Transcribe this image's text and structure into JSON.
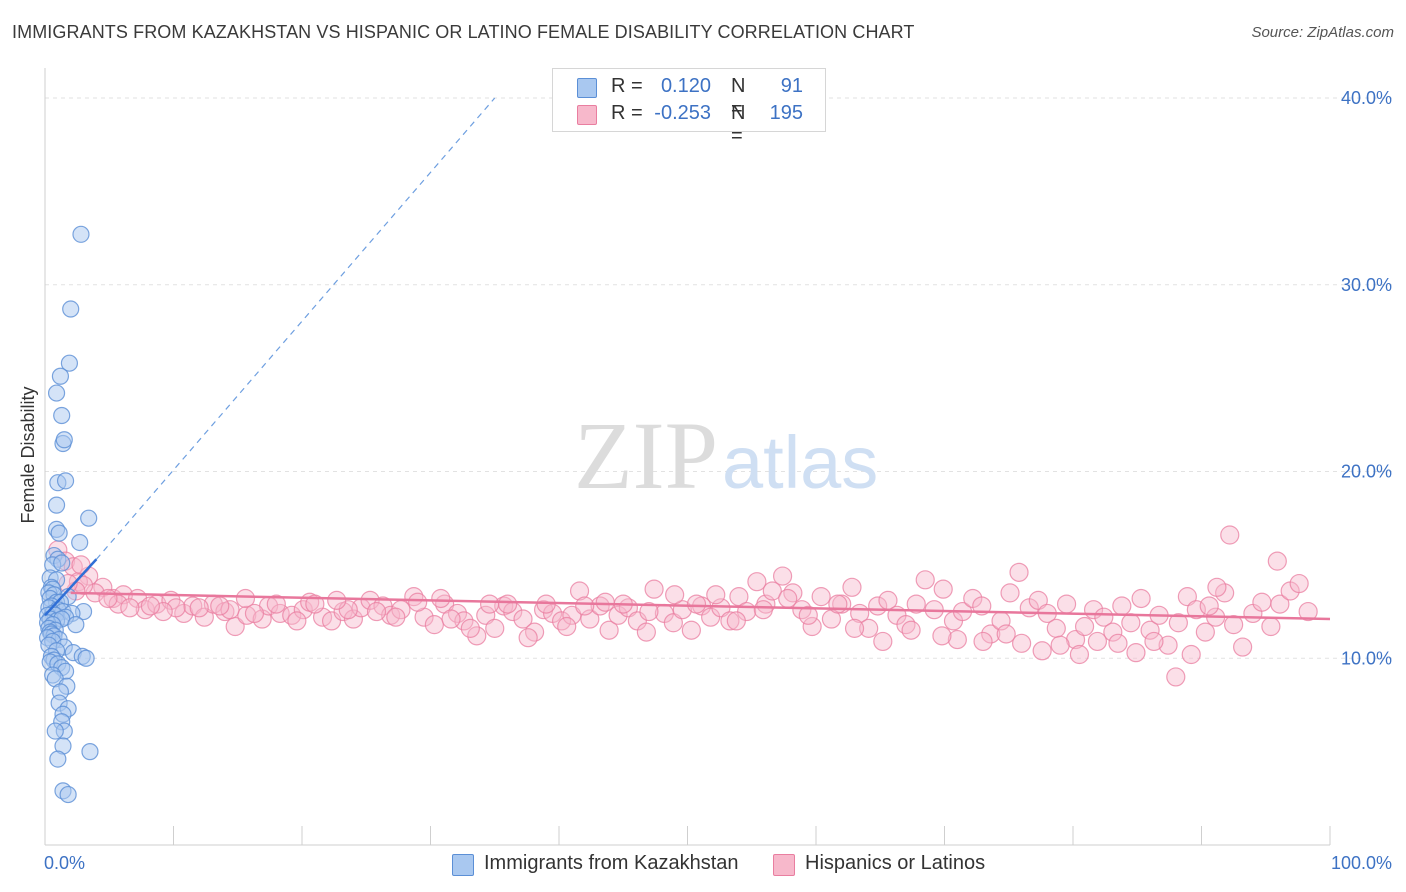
{
  "header": {
    "title": "IMMIGRANTS FROM KAZAKHSTAN VS HISPANIC OR LATINO FEMALE DISABILITY CORRELATION CHART",
    "source": "Source: ZipAtlas.com"
  },
  "watermark": {
    "part1": "ZIP",
    "part2": "atlas"
  },
  "legend": {
    "rows": [
      {
        "r_label": "R =",
        "r_value": "0.120",
        "n_label": "N =",
        "n_value": "91",
        "color": "#a9c8f0",
        "stroke": "#5b8fd6"
      },
      {
        "r_label": "R =",
        "r_value": "-0.253",
        "n_label": "N =",
        "n_value": "195",
        "color": "#f7b8cb",
        "stroke": "#e97ea0"
      }
    ]
  },
  "bottom_legend": {
    "items": [
      {
        "label": "Immigrants from Kazakhstan",
        "color": "#a9c8f0",
        "stroke": "#5b8fd6"
      },
      {
        "label": "Hispanics or Latinos",
        "color": "#f7b8cb",
        "stroke": "#e97ea0"
      }
    ]
  },
  "chart_data": {
    "type": "scatter",
    "title": "IMMIGRANTS FROM KAZAKHSTAN VS HISPANIC OR LATINO FEMALE DISABILITY CORRELATION CHART",
    "xlabel": "",
    "ylabel": "Female Disability",
    "xlim": [
      0,
      100
    ],
    "ylim": [
      0,
      41.5
    ],
    "x_tick_labels": [
      "0.0%",
      "100.0%"
    ],
    "y_ticks": [
      10,
      20,
      30,
      40
    ],
    "y_tick_labels": [
      "10.0%",
      "20.0%",
      "30.0%",
      "40.0%"
    ],
    "grid": true,
    "series": [
      {
        "name": "Immigrants from Kazakhstan",
        "color": "#a9c8f0",
        "stroke": "#5b8fd6",
        "trend": {
          "x": [
            0,
            4
          ],
          "y": [
            12.3,
            15.3
          ],
          "extended_x": [
            4,
            35
          ],
          "extended_y": [
            15.3,
            40.0
          ]
        },
        "points": [
          [
            2.8,
            32.7
          ],
          [
            2.0,
            28.7
          ],
          [
            1.9,
            25.8
          ],
          [
            1.2,
            25.1
          ],
          [
            0.9,
            24.2
          ],
          [
            1.3,
            23.0
          ],
          [
            1.4,
            21.5
          ],
          [
            1.5,
            21.7
          ],
          [
            1.0,
            19.4
          ],
          [
            1.6,
            19.5
          ],
          [
            0.9,
            18.2
          ],
          [
            3.4,
            17.5
          ],
          [
            0.9,
            16.9
          ],
          [
            1.1,
            16.7
          ],
          [
            2.7,
            16.2
          ],
          [
            0.7,
            15.5
          ],
          [
            1.0,
            15.3
          ],
          [
            0.6,
            15.0
          ],
          [
            1.3,
            15.1
          ],
          [
            0.4,
            14.3
          ],
          [
            0.9,
            14.2
          ],
          [
            0.5,
            13.8
          ],
          [
            0.6,
            13.7
          ],
          [
            0.3,
            13.5
          ],
          [
            0.7,
            13.4
          ],
          [
            1.8,
            13.3
          ],
          [
            0.4,
            13.2
          ],
          [
            0.9,
            13.0
          ],
          [
            1.2,
            13.0
          ],
          [
            0.5,
            12.8
          ],
          [
            0.3,
            12.7
          ],
          [
            1.0,
            12.6
          ],
          [
            1.4,
            12.5
          ],
          [
            3.0,
            12.5
          ],
          [
            0.6,
            12.4
          ],
          [
            2.1,
            12.4
          ],
          [
            0.2,
            12.3
          ],
          [
            0.8,
            12.3
          ],
          [
            1.6,
            12.2
          ],
          [
            0.4,
            12.1
          ],
          [
            0.9,
            12.0
          ],
          [
            1.3,
            12.1
          ],
          [
            0.2,
            11.9
          ],
          [
            0.6,
            11.8
          ],
          [
            2.4,
            11.8
          ],
          [
            0.3,
            11.6
          ],
          [
            0.8,
            11.5
          ],
          [
            0.4,
            11.4
          ],
          [
            0.5,
            11.3
          ],
          [
            0.7,
            11.2
          ],
          [
            0.2,
            11.1
          ],
          [
            1.1,
            11.0
          ],
          [
            0.6,
            10.9
          ],
          [
            0.3,
            10.7
          ],
          [
            1.5,
            10.6
          ],
          [
            0.9,
            10.4
          ],
          [
            2.2,
            10.3
          ],
          [
            0.5,
            10.1
          ],
          [
            2.9,
            10.1
          ],
          [
            3.2,
            10.0
          ],
          [
            0.7,
            9.9
          ],
          [
            0.4,
            9.8
          ],
          [
            1.0,
            9.7
          ],
          [
            1.3,
            9.5
          ],
          [
            1.6,
            9.3
          ],
          [
            0.6,
            9.1
          ],
          [
            0.8,
            8.9
          ],
          [
            1.7,
            8.5
          ],
          [
            1.2,
            8.2
          ],
          [
            1.1,
            7.6
          ],
          [
            1.8,
            7.3
          ],
          [
            1.4,
            7.0
          ],
          [
            1.3,
            6.6
          ],
          [
            1.5,
            6.1
          ],
          [
            0.8,
            6.1
          ],
          [
            1.4,
            5.3
          ],
          [
            3.5,
            5.0
          ],
          [
            1.0,
            4.6
          ],
          [
            1.4,
            2.9
          ],
          [
            1.8,
            2.7
          ]
        ]
      },
      {
        "name": "Hispanics or Latinos",
        "color": "#f7b8cb",
        "stroke": "#e97ea0",
        "trend": {
          "x": [
            2,
            100
          ],
          "y": [
            13.5,
            12.1
          ]
        },
        "points": [
          [
            1.0,
            15.8
          ],
          [
            1.6,
            15.2
          ],
          [
            2.2,
            14.9
          ],
          [
            3.4,
            14.4
          ],
          [
            2.6,
            14.1
          ],
          [
            4.5,
            13.8
          ],
          [
            3.9,
            13.5
          ],
          [
            5.3,
            13.2
          ],
          [
            6.1,
            13.4
          ],
          [
            5.7,
            12.9
          ],
          [
            7.2,
            13.2
          ],
          [
            7.8,
            12.6
          ],
          [
            8.7,
            12.9
          ],
          [
            9.8,
            13.1
          ],
          [
            10.8,
            12.4
          ],
          [
            11.5,
            12.8
          ],
          [
            12.4,
            12.2
          ],
          [
            13.1,
            12.9
          ],
          [
            14.0,
            12.5
          ],
          [
            14.8,
            11.7
          ],
          [
            15.7,
            12.3
          ],
          [
            15.6,
            13.2
          ],
          [
            16.9,
            12.1
          ],
          [
            17.4,
            12.8
          ],
          [
            18.3,
            12.4
          ],
          [
            19.2,
            12.3
          ],
          [
            20.1,
            12.6
          ],
          [
            20.6,
            13.0
          ],
          [
            21.6,
            12.2
          ],
          [
            22.3,
            12.0
          ],
          [
            23.2,
            12.5
          ],
          [
            24.0,
            12.1
          ],
          [
            24.6,
            12.7
          ],
          [
            25.3,
            13.1
          ],
          [
            26.3,
            12.8
          ],
          [
            26.9,
            12.3
          ],
          [
            27.7,
            12.6
          ],
          [
            28.7,
            13.3
          ],
          [
            29.5,
            12.2
          ],
          [
            30.3,
            11.8
          ],
          [
            31.1,
            12.9
          ],
          [
            32.1,
            12.4
          ],
          [
            32.6,
            12.0
          ],
          [
            33.6,
            11.2
          ],
          [
            34.3,
            12.3
          ],
          [
            35.0,
            11.6
          ],
          [
            35.7,
            12.8
          ],
          [
            36.4,
            12.5
          ],
          [
            37.2,
            12.1
          ],
          [
            38.1,
            11.4
          ],
          [
            38.8,
            12.6
          ],
          [
            39.5,
            12.4
          ],
          [
            40.2,
            12.0
          ],
          [
            41.0,
            12.3
          ],
          [
            41.6,
            13.6
          ],
          [
            42.4,
            12.1
          ],
          [
            43.2,
            12.8
          ],
          [
            43.9,
            11.5
          ],
          [
            44.6,
            12.3
          ],
          [
            45.4,
            12.7
          ],
          [
            46.1,
            12.0
          ],
          [
            46.8,
            11.4
          ],
          [
            47.4,
            13.7
          ],
          [
            48.2,
            12.4
          ],
          [
            48.9,
            11.9
          ],
          [
            49.6,
            12.6
          ],
          [
            50.3,
            11.5
          ],
          [
            51.1,
            12.8
          ],
          [
            51.8,
            12.2
          ],
          [
            52.6,
            12.7
          ],
          [
            53.3,
            12.0
          ],
          [
            54.0,
            13.3
          ],
          [
            54.6,
            12.5
          ],
          [
            55.4,
            14.1
          ],
          [
            56.1,
            12.9
          ],
          [
            56.6,
            13.6
          ],
          [
            57.4,
            14.4
          ],
          [
            58.2,
            13.5
          ],
          [
            58.9,
            12.6
          ],
          [
            59.7,
            11.7
          ],
          [
            60.4,
            13.3
          ],
          [
            61.2,
            12.1
          ],
          [
            62.0,
            12.9
          ],
          [
            62.8,
            13.8
          ],
          [
            63.4,
            12.4
          ],
          [
            64.1,
            11.6
          ],
          [
            64.8,
            12.8
          ],
          [
            65.6,
            13.1
          ],
          [
            66.3,
            12.3
          ],
          [
            67.0,
            11.8
          ],
          [
            67.8,
            12.9
          ],
          [
            68.5,
            14.2
          ],
          [
            69.2,
            12.6
          ],
          [
            69.9,
            13.7
          ],
          [
            70.7,
            12.0
          ],
          [
            71.4,
            12.5
          ],
          [
            72.2,
            13.2
          ],
          [
            72.9,
            12.8
          ],
          [
            73.6,
            11.3
          ],
          [
            74.4,
            12.0
          ],
          [
            75.1,
            13.5
          ],
          [
            75.8,
            14.6
          ],
          [
            76.6,
            12.7
          ],
          [
            77.3,
            13.1
          ],
          [
            78.0,
            12.4
          ],
          [
            78.7,
            11.6
          ],
          [
            79.5,
            12.9
          ],
          [
            80.2,
            11.0
          ],
          [
            80.9,
            11.7
          ],
          [
            81.6,
            12.6
          ],
          [
            82.4,
            12.2
          ],
          [
            83.1,
            11.4
          ],
          [
            83.8,
            12.8
          ],
          [
            84.5,
            11.9
          ],
          [
            85.3,
            13.2
          ],
          [
            86.0,
            11.5
          ],
          [
            86.7,
            12.3
          ],
          [
            87.4,
            10.7
          ],
          [
            88.2,
            11.9
          ],
          [
            88.9,
            13.3
          ],
          [
            89.6,
            12.6
          ],
          [
            90.3,
            11.4
          ],
          [
            91.1,
            12.2
          ],
          [
            91.8,
            13.5
          ],
          [
            92.5,
            11.8
          ],
          [
            93.2,
            10.6
          ],
          [
            94.0,
            12.4
          ],
          [
            94.7,
            13.0
          ],
          [
            95.4,
            11.7
          ],
          [
            96.1,
            12.9
          ],
          [
            96.9,
            13.6
          ],
          [
            97.6,
            14.0
          ],
          [
            98.3,
            12.5
          ],
          [
            95.9,
            15.2
          ],
          [
            92.2,
            16.6
          ],
          [
            91.2,
            13.8
          ],
          [
            90.6,
            12.8
          ],
          [
            89.2,
            10.2
          ],
          [
            88.0,
            9.0
          ],
          [
            86.3,
            10.9
          ],
          [
            84.9,
            10.3
          ],
          [
            83.5,
            10.8
          ],
          [
            81.9,
            10.9
          ],
          [
            80.5,
            10.2
          ],
          [
            79.0,
            10.7
          ],
          [
            77.6,
            10.4
          ],
          [
            76.0,
            10.8
          ],
          [
            74.8,
            11.3
          ],
          [
            73.0,
            10.9
          ],
          [
            71.0,
            11.0
          ],
          [
            69.8,
            11.2
          ],
          [
            67.4,
            11.5
          ],
          [
            65.2,
            10.9
          ],
          [
            63.0,
            11.6
          ],
          [
            61.7,
            12.9
          ],
          [
            59.4,
            12.3
          ],
          [
            57.8,
            13.2
          ],
          [
            55.9,
            12.6
          ],
          [
            53.8,
            12.0
          ],
          [
            52.2,
            13.4
          ],
          [
            50.7,
            12.9
          ],
          [
            49.0,
            13.4
          ],
          [
            47.0,
            12.5
          ],
          [
            45.0,
            12.9
          ],
          [
            43.6,
            13.0
          ],
          [
            42.0,
            12.8
          ],
          [
            40.6,
            11.7
          ],
          [
            39.0,
            12.9
          ],
          [
            37.6,
            11.1
          ],
          [
            36.0,
            12.9
          ],
          [
            34.6,
            12.9
          ],
          [
            33.1,
            11.6
          ],
          [
            31.6,
            12.1
          ],
          [
            30.8,
            13.2
          ],
          [
            29.0,
            13.0
          ],
          [
            27.3,
            12.2
          ],
          [
            25.8,
            12.5
          ],
          [
            23.6,
            12.6
          ],
          [
            22.7,
            13.1
          ],
          [
            21.0,
            12.9
          ],
          [
            19.6,
            12.0
          ],
          [
            18.0,
            12.9
          ],
          [
            16.3,
            12.4
          ],
          [
            14.4,
            12.6
          ],
          [
            13.6,
            12.8
          ],
          [
            12.0,
            12.7
          ],
          [
            10.2,
            12.7
          ],
          [
            9.2,
            12.5
          ],
          [
            8.2,
            12.8
          ],
          [
            6.6,
            12.7
          ],
          [
            4.9,
            13.2
          ],
          [
            3.0,
            13.9
          ],
          [
            2.4,
            13.6
          ],
          [
            1.8,
            14.0
          ],
          [
            2.8,
            15.0
          ]
        ]
      }
    ]
  }
}
